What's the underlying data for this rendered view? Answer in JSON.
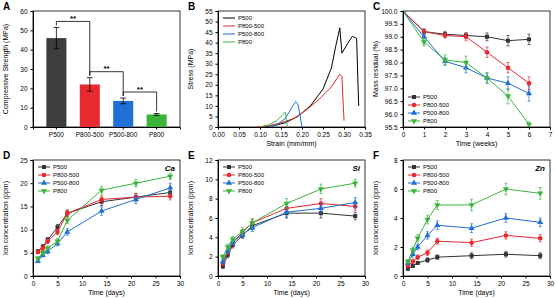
{
  "chart_data": [
    {
      "type": "bar",
      "panel_label": "A",
      "y_label": "Compressive Strength (MPa)",
      "categories": [
        "P500",
        "P800-500",
        "P500-800",
        "P800"
      ],
      "values": [
        46,
        22,
        13.5,
        6.5
      ],
      "errors": [
        5.5,
        3.5,
        1.5,
        0.5
      ],
      "colors": [
        "#3d3d3d",
        "#e8292f",
        "#1f6fd6",
        "#3cb43c"
      ],
      "ylim": [
        0,
        60
      ],
      "yticks": [
        0,
        10,
        20,
        30,
        40,
        50,
        60
      ],
      "annotations": [
        {
          "text": "**",
          "between": [
            "P500",
            "P800-500"
          ]
        },
        {
          "text": "**",
          "between": [
            "P800-500",
            "P500-800"
          ]
        },
        {
          "text": "**",
          "between": [
            "P500-800",
            "P800"
          ]
        }
      ]
    },
    {
      "type": "line",
      "panel_label": "B",
      "x_label": "Strain (mm/mm)",
      "y_label": "Stress (MPa)",
      "legend": "upper left",
      "xlim": [
        0,
        0.35
      ],
      "xticks": [
        {
          "value": 0,
          "label": "0.00"
        },
        {
          "value": 0.05,
          "label": "0.05"
        },
        {
          "value": 0.1,
          "label": "0.10"
        },
        {
          "value": 0.15,
          "label": "0.15"
        },
        {
          "value": 0.2,
          "label": "0.20"
        },
        {
          "value": 0.25,
          "label": "0.25"
        },
        {
          "value": 0.3,
          "label": "0.30"
        },
        {
          "value": 0.35,
          "label": "0.35"
        }
      ],
      "ylim": [
        0,
        55
      ],
      "yticks": [
        0,
        5,
        10,
        15,
        20,
        25,
        30,
        35,
        40,
        45,
        50,
        55
      ],
      "series": [
        {
          "name": "P500",
          "color": "#000000",
          "x": [
            0.1,
            0.13,
            0.16,
            0.19,
            0.22,
            0.25,
            0.27,
            0.28,
            0.29,
            0.295,
            0.31,
            0.32,
            0.33,
            0.335
          ],
          "values": [
            0,
            0.5,
            2,
            5,
            10,
            18,
            28,
            38,
            47,
            35,
            40,
            43,
            42,
            10
          ]
        },
        {
          "name": "P800-500",
          "color": "#e8292f",
          "x": [
            0.09,
            0.12,
            0.15,
            0.18,
            0.21,
            0.24,
            0.27,
            0.29,
            0.295,
            0.3
          ],
          "values": [
            0,
            0.5,
            2,
            4,
            8,
            13,
            19,
            25,
            24,
            3
          ]
        },
        {
          "name": "P500-800",
          "color": "#1f6fd6",
          "x": [
            0.12,
            0.14,
            0.16,
            0.175,
            0.185,
            0.19,
            0.195,
            0.2
          ],
          "values": [
            0,
            1,
            4,
            9,
            12,
            11,
            6,
            0
          ]
        },
        {
          "name": "P800",
          "color": "#3cb43c",
          "x": [
            0.1,
            0.12,
            0.14,
            0.155,
            0.16,
            0.165
          ],
          "values": [
            0,
            1,
            3,
            6,
            7,
            0.5
          ]
        }
      ]
    },
    {
      "type": "line",
      "panel_label": "C",
      "x_label": "Time (weeks)",
      "y_label": "Mass residual (%)",
      "legend": "lower left",
      "x": [
        0,
        1,
        2,
        3,
        4,
        5,
        6
      ],
      "xlim": [
        0,
        7
      ],
      "xticks": [
        0,
        1,
        2,
        3,
        4,
        5,
        6,
        7
      ],
      "ylim": [
        95.5,
        100
      ],
      "yticks": [
        95.5,
        {
          "value": 96,
          "label": "96.0"
        },
        96.5,
        {
          "value": 97,
          "label": "97.0"
        },
        97.5,
        {
          "value": 98,
          "label": "98.0"
        },
        98.5,
        {
          "value": 99,
          "label": "99.0"
        },
        99.5,
        {
          "value": 100,
          "label": "100.0"
        }
      ],
      "series": [
        {
          "name": "P500",
          "color": "#333333",
          "marker": "square",
          "values": [
            100,
            99.2,
            99.1,
            99.05,
            99.0,
            98.85,
            98.9
          ],
          "errors": [
            0,
            0.1,
            0.1,
            0.1,
            0.15,
            0.2,
            0.2
          ]
        },
        {
          "name": "P800-500",
          "color": "#e8292f",
          "marker": "circle",
          "values": [
            100,
            99.2,
            99.05,
            99.0,
            98.4,
            97.8,
            97.2
          ],
          "errors": [
            0,
            0.1,
            0.1,
            0.15,
            0.2,
            0.2,
            0.25
          ]
        },
        {
          "name": "P500-800",
          "color": "#1f6fd6",
          "marker": "triangle-up",
          "values": [
            100,
            99.0,
            98.05,
            97.8,
            97.4,
            97.2,
            96.8
          ],
          "errors": [
            0,
            0.15,
            0.15,
            0.2,
            0.2,
            0.25,
            0.3
          ]
        },
        {
          "name": "P800",
          "color": "#3cb43c",
          "marker": "triangle-down",
          "values": [
            100,
            98.8,
            98.1,
            98.0,
            97.4,
            96.7,
            95.6
          ],
          "errors": [
            0,
            0.15,
            0.2,
            0.25,
            0.2,
            0.3,
            0.1
          ]
        }
      ]
    },
    {
      "type": "line",
      "panel_label": "D",
      "x_label": "Time (days)",
      "y_label": "Ion concentration (ppm)",
      "legend": "upper left",
      "annotations": [
        {
          "text": "Ca"
        }
      ],
      "x": [
        1,
        2,
        3,
        5,
        7,
        14,
        21,
        28
      ],
      "xlim": [
        0,
        30
      ],
      "xticks": [
        0,
        5,
        10,
        15,
        20,
        25,
        30
      ],
      "ylim": [
        0,
        25
      ],
      "yticks": [
        0,
        5,
        10,
        15,
        20,
        25
      ],
      "series": [
        {
          "name": "P500",
          "color": "#333333",
          "marker": "square",
          "values": [
            5.3,
            6.3,
            7.8,
            10.5,
            13.5,
            16,
            17,
            18
          ],
          "errors": [
            0.4,
            0.5,
            0.5,
            0.6,
            0.7,
            0.8,
            0.8,
            0.9
          ]
        },
        {
          "name": "P800-500",
          "color": "#e8292f",
          "marker": "circle",
          "values": [
            5.2,
            6,
            7.5,
            9.5,
            13.5,
            16.5,
            17,
            17.2
          ],
          "errors": [
            0.4,
            0.5,
            0.5,
            0.6,
            0.7,
            0.8,
            0.8,
            0.8
          ]
        },
        {
          "name": "P500-800",
          "color": "#1f6fd6",
          "marker": "triangle-up",
          "values": [
            3.2,
            4.5,
            5.3,
            7,
            9.5,
            14,
            16.5,
            19
          ],
          "errors": [
            0.3,
            0.4,
            0.5,
            0.5,
            0.7,
            0.9,
            0.9,
            1.0
          ]
        },
        {
          "name": "P800",
          "color": "#3cb43c",
          "marker": "triangle-down",
          "values": [
            3.8,
            5,
            6,
            7.5,
            12,
            18.5,
            20,
            21.5
          ],
          "errors": [
            0.3,
            0.4,
            0.5,
            0.6,
            0.7,
            0.8,
            0.8,
            0.7
          ]
        }
      ]
    },
    {
      "type": "line",
      "panel_label": "E",
      "x_label": "Time (days)",
      "y_label": "Ion concentration (ppm)",
      "legend": "upper left",
      "annotations": [
        {
          "text": "Si"
        }
      ],
      "x": [
        1,
        2,
        3,
        5,
        7,
        14,
        21,
        28
      ],
      "xlim": [
        0,
        30
      ],
      "xticks": [
        0,
        5,
        10,
        15,
        20,
        25,
        30
      ],
      "ylim": [
        0,
        12
      ],
      "yticks": [
        0,
        2,
        4,
        6,
        8,
        10,
        12
      ],
      "series": [
        {
          "name": "P500",
          "color": "#333333",
          "marker": "square",
          "values": [
            1,
            2.2,
            3.2,
            4.2,
            5.2,
            6.5,
            6.5,
            6.2
          ],
          "errors": [
            0.2,
            0.3,
            0.3,
            0.3,
            0.4,
            0.5,
            0.5,
            0.4
          ]
        },
        {
          "name": "P800-500",
          "color": "#e8292f",
          "marker": "circle",
          "values": [
            1.3,
            2.5,
            3.5,
            4.5,
            5.5,
            7,
            7.5,
            7.2
          ],
          "errors": [
            0.2,
            0.3,
            0.3,
            0.3,
            0.4,
            0.5,
            0.5,
            0.4
          ]
        },
        {
          "name": "P500-800",
          "color": "#1f6fd6",
          "marker": "triangle-up",
          "values": [
            1.5,
            2.6,
            3.5,
            4.3,
            5,
            6.6,
            7,
            7.6
          ],
          "errors": [
            0.2,
            0.3,
            0.3,
            0.3,
            0.4,
            0.5,
            0.5,
            0.5
          ]
        },
        {
          "name": "P800",
          "color": "#3cb43c",
          "marker": "triangle-down",
          "values": [
            2,
            3,
            3.8,
            4.6,
            5.5,
            7.5,
            9,
            9.6
          ],
          "errors": [
            0.2,
            0.3,
            0.3,
            0.4,
            0.4,
            0.5,
            0.5,
            0.4
          ]
        }
      ]
    },
    {
      "type": "line",
      "panel_label": "F",
      "x_label": "Time (days)",
      "y_label": "Ion concentration (ppm)",
      "legend": "upper left",
      "annotations": [
        {
          "text": "Zn"
        }
      ],
      "x": [
        1,
        2,
        3,
        5,
        7,
        14,
        21,
        28
      ],
      "xlim": [
        0,
        30
      ],
      "xticks": [
        0,
        5,
        10,
        15,
        20,
        25,
        30
      ],
      "ylim": [
        0,
        8
      ],
      "yticks": [
        0,
        2,
        4,
        6,
        8
      ],
      "series": [
        {
          "name": "P500",
          "color": "#333333",
          "marker": "square",
          "values": [
            0.5,
            0.7,
            0.9,
            1.1,
            1.3,
            1.4,
            1.5,
            1.4
          ],
          "errors": [
            0.1,
            0.1,
            0.1,
            0.15,
            0.15,
            0.2,
            0.2,
            0.2
          ]
        },
        {
          "name": "P800-500",
          "color": "#e8292f",
          "marker": "circle",
          "values": [
            0.7,
            1.0,
            1.3,
            1.6,
            2.4,
            2.3,
            2.8,
            2.6
          ],
          "errors": [
            0.1,
            0.15,
            0.15,
            0.2,
            0.2,
            0.25,
            0.25,
            0.25
          ]
        },
        {
          "name": "P500-800",
          "color": "#1f6fd6",
          "marker": "triangle-up",
          "values": [
            0.9,
            1.5,
            2.0,
            2.8,
            3.5,
            3.3,
            4.0,
            3.7
          ],
          "errors": [
            0.1,
            0.2,
            0.2,
            0.25,
            0.3,
            0.3,
            0.3,
            0.3
          ]
        },
        {
          "name": "P800",
          "color": "#3cb43c",
          "marker": "triangle-down",
          "values": [
            1.0,
            1.8,
            2.6,
            3.9,
            4.9,
            4.9,
            6.0,
            5.7
          ],
          "errors": [
            0.15,
            0.2,
            0.25,
            0.3,
            0.3,
            0.4,
            0.4,
            0.4
          ]
        }
      ]
    }
  ]
}
